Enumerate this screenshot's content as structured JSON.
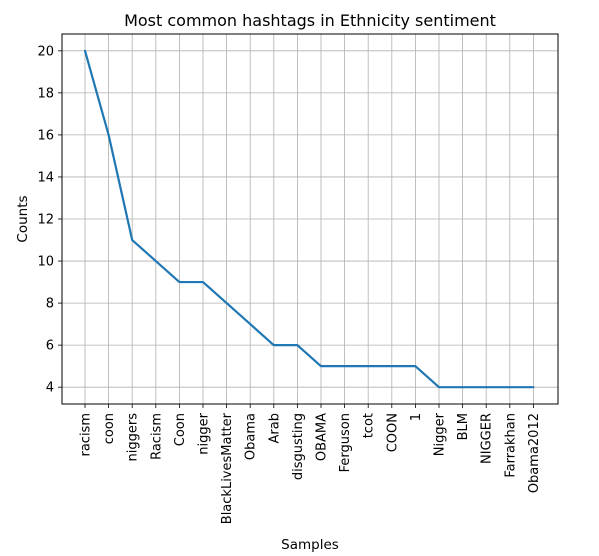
{
  "chart_data": {
    "type": "line",
    "title": "Most common hashtags in Ethnicity sentiment",
    "xlabel": "Samples",
    "ylabel": "Counts",
    "categories": [
      "racism",
      "coon",
      "niggers",
      "Racism",
      "Coon",
      "nigger",
      "BlackLivesMatter",
      "Obama",
      "Arab",
      "disgusting",
      "OBAMA",
      "Ferguson",
      "tcot",
      "COON",
      "1",
      "Nigger",
      "BLM",
      "NIGGER",
      "Farrakhan",
      "Obama2012"
    ],
    "values": [
      20,
      16,
      11,
      10,
      9,
      9,
      8,
      7,
      6,
      6,
      5,
      5,
      5,
      5,
      5,
      4,
      4,
      4,
      4,
      4
    ],
    "yticks": [
      4,
      6,
      8,
      10,
      12,
      14,
      16,
      18,
      20
    ],
    "ylim": [
      3.2,
      20.8
    ],
    "grid": true,
    "line_color": "#1f77b4",
    "grid_color": "#b0b0b0"
  }
}
